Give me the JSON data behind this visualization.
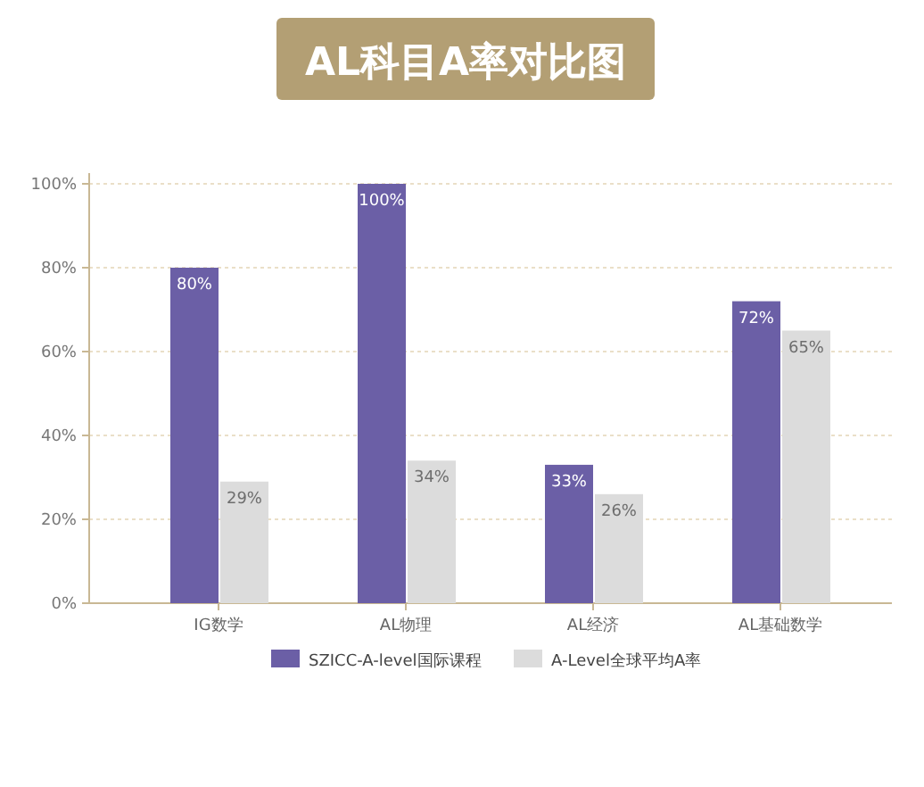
{
  "chart_data": {
    "type": "bar",
    "title": "AL科目A率对比图",
    "categories": [
      "IG数学",
      "AL物理",
      "AL经济",
      "AL基础数学"
    ],
    "series": [
      {
        "name": "SZICC-A-level国际课程",
        "color": "#6b5fa6",
        "values": [
          80,
          100,
          33,
          72
        ],
        "value_labels": [
          "80%",
          "100%",
          "33%",
          "72%"
        ]
      },
      {
        "name": "A-Level全球平均A率",
        "color": "#dcdcdc",
        "values": [
          29,
          34,
          26,
          65
        ],
        "value_labels": [
          "29%",
          "34%",
          "26%",
          "65%"
        ]
      }
    ],
    "ylim": [
      0,
      100
    ],
    "yticks": [
      {
        "value": 0,
        "label": "0%"
      },
      {
        "value": 20,
        "label": "20%"
      },
      {
        "value": 40,
        "label": "40%"
      },
      {
        "value": 60,
        "label": "60%"
      },
      {
        "value": 80,
        "label": "80%"
      },
      {
        "value": 100,
        "label": "100%"
      }
    ],
    "grid": "y",
    "legend": "bottom"
  }
}
